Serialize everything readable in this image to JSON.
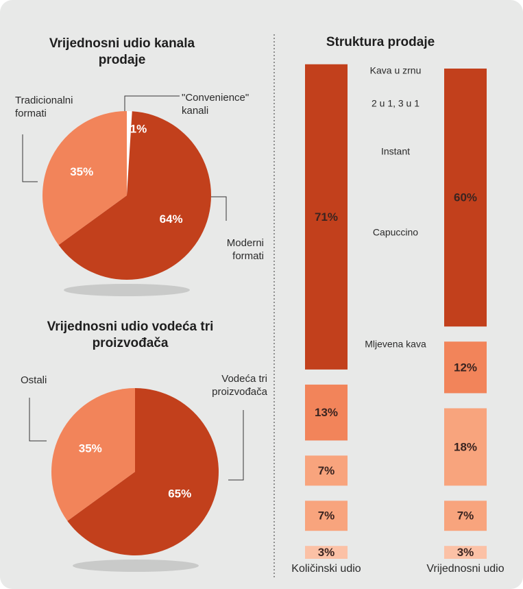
{
  "chart_data": [
    {
      "type": "pie",
      "title": "Vrijednosni udio kanala prodaje",
      "categories": [
        "\"Convenience\" kanali",
        "Moderni formati",
        "Tradicionalni formati"
      ],
      "values": [
        1,
        64,
        35
      ],
      "value_labels": [
        "1%",
        "64%",
        "35%"
      ],
      "colors": [
        "#ffffff",
        "#c2401c",
        "#f2845a"
      ]
    },
    {
      "type": "pie",
      "title": "Vrijednosni udio vodeća tri proizvođača",
      "categories": [
        "Vodeća tri proizvođača",
        "Ostali"
      ],
      "values": [
        65,
        35
      ],
      "value_labels": [
        "65%",
        "35%"
      ],
      "colors": [
        "#c2401c",
        "#f2845a"
      ]
    },
    {
      "type": "stacked_bar",
      "title": "Struktura prodaje",
      "categories": [
        "Količinski udio",
        "Vrijednosni udio"
      ],
      "series": [
        {
          "name": "Kava u zrnu",
          "color": "#fbc1a6",
          "values": [
            3,
            3
          ],
          "value_labels": [
            "3%",
            "3%"
          ]
        },
        {
          "name": "2 u 1, 3 u 1",
          "color": "#f8a47d",
          "values": [
            7,
            7
          ],
          "value_labels": [
            "7%",
            "7%"
          ]
        },
        {
          "name": "Instant",
          "color": "#f8a47d",
          "values": [
            7,
            18
          ],
          "value_labels": [
            "7%",
            "18%"
          ]
        },
        {
          "name": "Capuccino",
          "color": "#f2845a",
          "values": [
            13,
            12
          ],
          "value_labels": [
            "13%",
            "12%"
          ]
        },
        {
          "name": "Mljevena kava",
          "color": "#c2401c",
          "values": [
            71,
            60
          ],
          "value_labels": [
            "71%",
            "60%"
          ]
        }
      ]
    }
  ]
}
